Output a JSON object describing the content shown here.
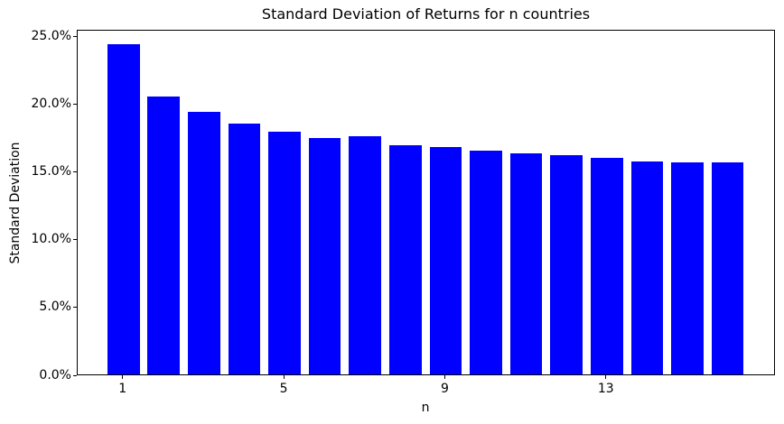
{
  "chart_data": {
    "type": "bar",
    "title": "Standard Deviation of Returns for n countries",
    "xlabel": "n",
    "ylabel": "Standard Deviation",
    "categories": [
      1,
      2,
      3,
      4,
      5,
      6,
      7,
      8,
      9,
      10,
      11,
      12,
      13,
      14,
      15,
      16
    ],
    "values": [
      24.4,
      20.5,
      19.4,
      18.5,
      17.9,
      17.45,
      17.55,
      16.9,
      16.8,
      16.5,
      16.3,
      16.15,
      15.95,
      15.7,
      15.65,
      15.65
    ],
    "value_unit": "%",
    "bar_color": "#0000ff",
    "ylim": [
      0,
      25.5
    ],
    "ytick_values": [
      0,
      5,
      10,
      15,
      20,
      25
    ],
    "ytick_labels": [
      "0.0%",
      "5.0%",
      "10.0%",
      "15.0%",
      "20.0%",
      "25.0%"
    ],
    "xtick_values": [
      1,
      5,
      9,
      13
    ],
    "xtick_labels": [
      "1",
      "5",
      "9",
      "13"
    ],
    "grid": false,
    "legend": null,
    "background_color": "#ffffff",
    "axis_color": "#000000"
  }
}
